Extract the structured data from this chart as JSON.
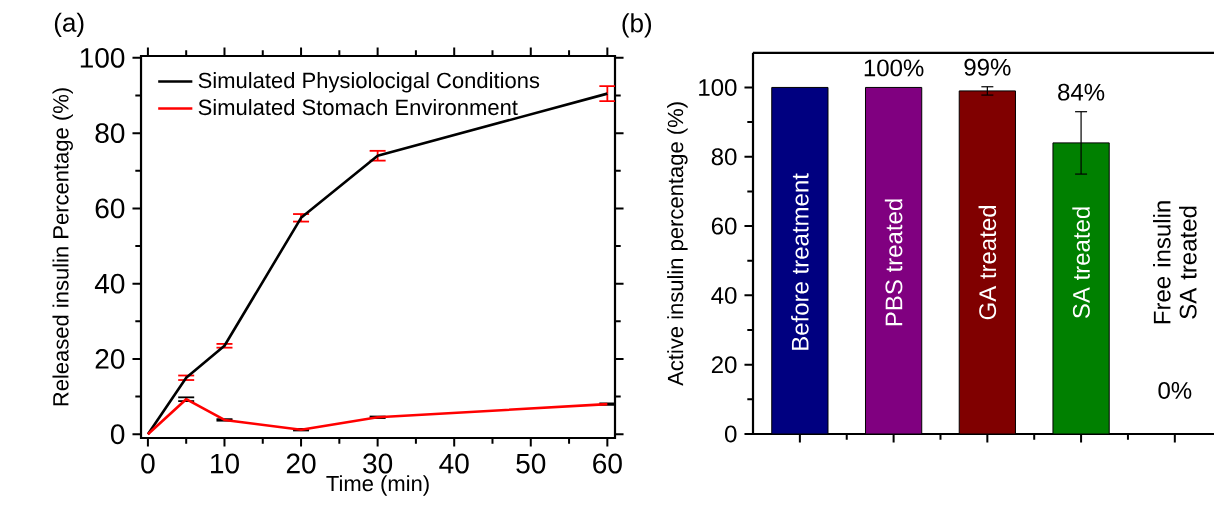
{
  "chart_data": [
    {
      "type": "line",
      "title": "(a)",
      "xlabel": "Time (min)",
      "ylabel": "Released insulin Percentage (%)",
      "x": [
        0,
        5,
        10,
        20,
        30,
        60
      ],
      "series": [
        {
          "name": "Simulated Physiolocigal Conditions",
          "color": "#000000",
          "values": [
            0,
            15,
            23.5,
            57.5,
            74,
            90.5
          ],
          "errors": [
            null,
            0.6,
            0.5,
            1,
            1.3,
            2
          ]
        },
        {
          "name": "Simulated Stomach Environment",
          "color": "#ff0000",
          "values": [
            0,
            9.3,
            3.8,
            1.2,
            4.5,
            8
          ],
          "errors": [
            null,
            0.5,
            0.2,
            0.2,
            0.2,
            0.2
          ]
        }
      ],
      "xlim": [
        -0.9,
        61
      ],
      "ylim": [
        -1,
        100.5
      ],
      "xticks": [
        0,
        10,
        20,
        30,
        40,
        50,
        60
      ],
      "yticks": [
        0,
        20,
        40,
        60,
        80,
        100
      ],
      "legend": "top left"
    },
    {
      "type": "bar",
      "title": "(b)",
      "ylabel": "Active insulin percentage (%)",
      "categories": [
        "Before treatment",
        "PBS treated",
        "GA treated",
        "SA treated",
        "Free insulin SA treated"
      ],
      "values": [
        100,
        100,
        99,
        84,
        0
      ],
      "colors": [
        "#000080",
        "#800080",
        "#800000",
        "#008000",
        "#000000"
      ],
      "errors": [
        null,
        null,
        1.2,
        9,
        null
      ],
      "value_labels": [
        null,
        "100%",
        "99%",
        "84%",
        "0%"
      ],
      "ylim": [
        0,
        110
      ],
      "yticks": [
        0,
        20,
        40,
        60,
        80,
        100
      ]
    }
  ]
}
